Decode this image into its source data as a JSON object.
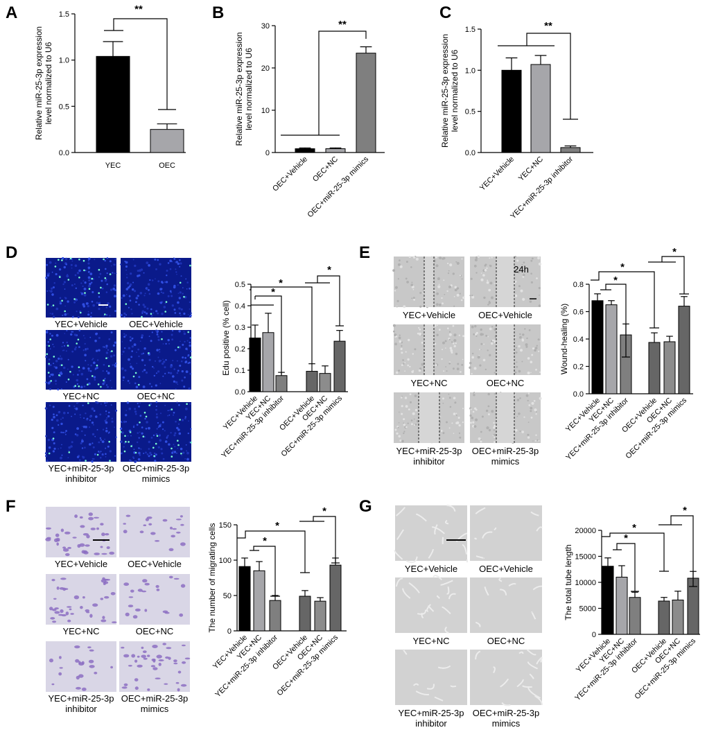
{
  "panels": {
    "A": "A",
    "B": "B",
    "C": "C",
    "D": "D",
    "E": "E",
    "F": "F",
    "G": "G"
  },
  "chart_data": [
    {
      "id": "A",
      "type": "bar",
      "ylabel": "Relative miR-25-3p expression level normalized to U6",
      "categories": [
        "YEC",
        "OEC"
      ],
      "values": [
        1.04,
        0.25
      ],
      "errors": [
        0.16,
        0.06
      ],
      "colors": [
        "#000000",
        "#a6a6aa"
      ],
      "ylim": [
        0,
        1.5
      ],
      "yticks": [
        "0.0",
        "0.5",
        "1.0",
        "1.5"
      ],
      "annotation": "**"
    },
    {
      "id": "B",
      "type": "bar",
      "ylabel": "Relative miR-25-3p expression level normalized to U6",
      "categories": [
        "OEC+Vehicle",
        "OEC+NC",
        "OEC+miR-25-3p mimics"
      ],
      "values": [
        0.9,
        0.9,
        23.5
      ],
      "errors": [
        0.2,
        0.2,
        1.5
      ],
      "colors": [
        "#000000",
        "#a6a6aa",
        "#7f7f7f"
      ],
      "ylim": [
        0,
        30
      ],
      "yticks": [
        "0",
        "10",
        "20",
        "30"
      ],
      "annotation": "**"
    },
    {
      "id": "C",
      "type": "bar",
      "ylabel": "Relative miR-25-3p expression level normalized to U6",
      "categories": [
        "YEC+Vehicle",
        "YEC+NC",
        "YEC+miR-25-3p inhibitor"
      ],
      "values": [
        1.0,
        1.07,
        0.06
      ],
      "errors": [
        0.15,
        0.11,
        0.02
      ],
      "colors": [
        "#000000",
        "#a6a6aa",
        "#7f7f7f"
      ],
      "ylim": [
        0,
        1.5
      ],
      "yticks": [
        "0.0",
        "0.5",
        "1.0",
        "1.5"
      ],
      "annotation": "**"
    },
    {
      "id": "D",
      "type": "bar",
      "ylabel": "Edu positive (% cell)",
      "categories": [
        "YEC+Vehicle",
        "YEC+NC",
        "YEC+miR-25-3p inhibitor",
        "OEC+Vehicle",
        "OEC+NC",
        "OEC+miR-25-3p mimics"
      ],
      "values": [
        0.25,
        0.275,
        0.075,
        0.095,
        0.085,
        0.235
      ],
      "errors": [
        0.06,
        0.09,
        0.015,
        0.035,
        0.035,
        0.05
      ],
      "colors": [
        "#000000",
        "#a6a6aa",
        "#7f7f7f",
        "#666666",
        "#8c8c8c",
        "#666666"
      ],
      "ylim": [
        0,
        0.5
      ],
      "yticks": [
        "0.0",
        "0.1",
        "0.2",
        "0.3",
        "0.4",
        "0.5"
      ],
      "annotation": "*"
    },
    {
      "id": "E",
      "type": "bar",
      "title": "24h",
      "ylabel": "Wound-healing (%)",
      "categories": [
        "YEC+Vehicle",
        "YEC+NC",
        "YEC+miR-25-3p inhibitor",
        "OEC+Vehicle",
        "OEC+NC",
        "OEC+miR-25-3p mimics"
      ],
      "values": [
        0.68,
        0.65,
        0.43,
        0.375,
        0.38,
        0.64
      ],
      "errors": [
        0.05,
        0.03,
        0.08,
        0.07,
        0.04,
        0.07
      ],
      "colors": [
        "#000000",
        "#a6a6aa",
        "#7f7f7f",
        "#666666",
        "#8c8c8c",
        "#666666"
      ],
      "ylim": [
        0,
        0.8
      ],
      "yticks": [
        "0.0",
        "0.2",
        "0.4",
        "0.6",
        "0.8"
      ],
      "annotation": "*"
    },
    {
      "id": "F",
      "type": "bar",
      "ylabel": "The number of migrating cells",
      "categories": [
        "YEC+Vehicle",
        "YEC+NC",
        "YEC+miR-25-3p inhibitor",
        "OEC+Vehicle",
        "OEC+NC",
        "OEC+miR-25-3p mimics"
      ],
      "values": [
        91,
        85,
        43,
        49,
        42,
        93
      ],
      "errors": [
        12,
        13,
        7,
        8,
        5,
        10
      ],
      "colors": [
        "#000000",
        "#a6a6aa",
        "#7f7f7f",
        "#666666",
        "#8c8c8c",
        "#666666"
      ],
      "ylim": [
        0,
        150
      ],
      "yticks": [
        "0",
        "50",
        "100",
        "150"
      ],
      "annotation": "*"
    },
    {
      "id": "G",
      "type": "bar",
      "ylabel": "The total tube length",
      "categories": [
        "YEC+Vehicle",
        "YEC+NC",
        "YEC+miR-25-3p inhibitor",
        "OEC+Vehicle",
        "OEC+NC",
        "OEC+miR-25-3p mimics"
      ],
      "values": [
        13100,
        11000,
        7100,
        6400,
        6600,
        10800
      ],
      "errors": [
        1600,
        2200,
        1000,
        700,
        1700,
        1300
      ],
      "colors": [
        "#000000",
        "#a6a6aa",
        "#7f7f7f",
        "#666666",
        "#8c8c8c",
        "#666666"
      ],
      "ylim": [
        0,
        20000
      ],
      "yticks": [
        "0",
        "5000",
        "10000",
        "15000",
        "20000"
      ],
      "annotation": "*"
    }
  ],
  "micrographs": {
    "D": [
      "YEC+Vehicle",
      "OEC+Vehicle",
      "YEC+NC",
      "OEC+NC",
      "YEC+miR-25-3p inhibitor",
      "OEC+miR-25-3p mimics"
    ],
    "E": [
      "YEC+Vehicle",
      "OEC+Vehicle",
      "YEC+NC",
      "OEC+NC",
      "YEC+miR-25-3p inhibitor",
      "OEC+miR-25-3p mimics"
    ],
    "F": [
      "YEC+Vehicle",
      "OEC+Vehicle",
      "YEC+NC",
      "OEC+NC",
      "YEC+miR-25-3p inhibitor",
      "OEC+miR-25-3p mimics"
    ],
    "G": [
      "YEC+Vehicle",
      "OEC+Vehicle",
      "YEC+NC",
      "OEC+NC",
      "YEC+miR-25-3p inhibitor",
      "OEC+miR-25-3p mimics"
    ]
  }
}
